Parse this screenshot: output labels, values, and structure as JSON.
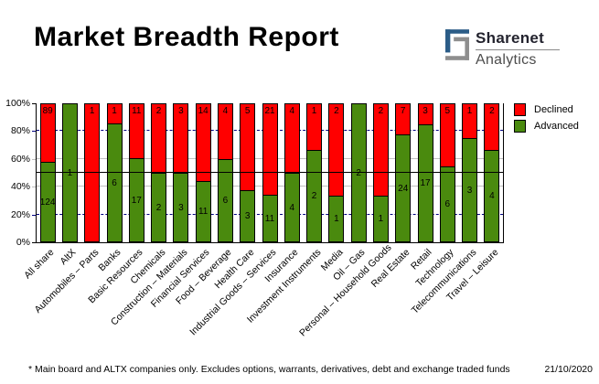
{
  "header": {
    "title": "Market Breadth Report",
    "logo": {
      "name": "Sharenet",
      "subtitle": "Analytics",
      "brand_blue": "#2B5C87",
      "brand_gray": "#8E8E8E"
    }
  },
  "chart_data": {
    "type": "bar",
    "stacked": true,
    "y_axis_percent": true,
    "ylim": [
      0,
      100
    ],
    "y_ticks": [
      "0%",
      "20%",
      "40%",
      "60%",
      "80%",
      "100%"
    ],
    "reference_line_percent": 50,
    "legend_position": "right",
    "grid": true,
    "gridlines": [
      {
        "percent": 20,
        "color": "#000080",
        "style": "dashed"
      },
      {
        "percent": 40,
        "color": "#C0C0C0",
        "style": "solid"
      },
      {
        "percent": 60,
        "color": "#C0C0C0",
        "style": "solid"
      },
      {
        "percent": 80,
        "color": "#000080",
        "style": "dashed"
      }
    ],
    "categories": [
      "All share",
      "AltX",
      "Automobiles – Parts",
      "Banks",
      "Basic Resources",
      "Chemicals",
      "Construction – Materials",
      "Financial Services",
      "Food – Beverage",
      "Health Care",
      "Industrial Goods – Services",
      "Insurance",
      "Investment Instruments",
      "Media",
      "Oil – Gas",
      "Personal – Household Goods",
      "Real Estate",
      "Retail",
      "Technology",
      "Telecommunications",
      "Travel – Leisure"
    ],
    "series": [
      {
        "name": "Declined",
        "color": "#FF0000",
        "values": [
          89,
          0,
          1,
          1,
          11,
          2,
          3,
          14,
          4,
          5,
          21,
          4,
          1,
          2,
          0,
          2,
          7,
          3,
          5,
          1,
          2
        ]
      },
      {
        "name": "Advanced",
        "color": "#4A8A0E",
        "values": [
          124,
          1,
          0,
          6,
          17,
          2,
          3,
          11,
          6,
          3,
          11,
          4,
          2,
          1,
          2,
          1,
          24,
          17,
          6,
          3,
          4
        ]
      }
    ]
  },
  "footer": {
    "note": "* Main board and ALTX companies only. Excludes options, warrants, derivatives, debt and exchange traded funds",
    "date": "21/10/2020"
  }
}
